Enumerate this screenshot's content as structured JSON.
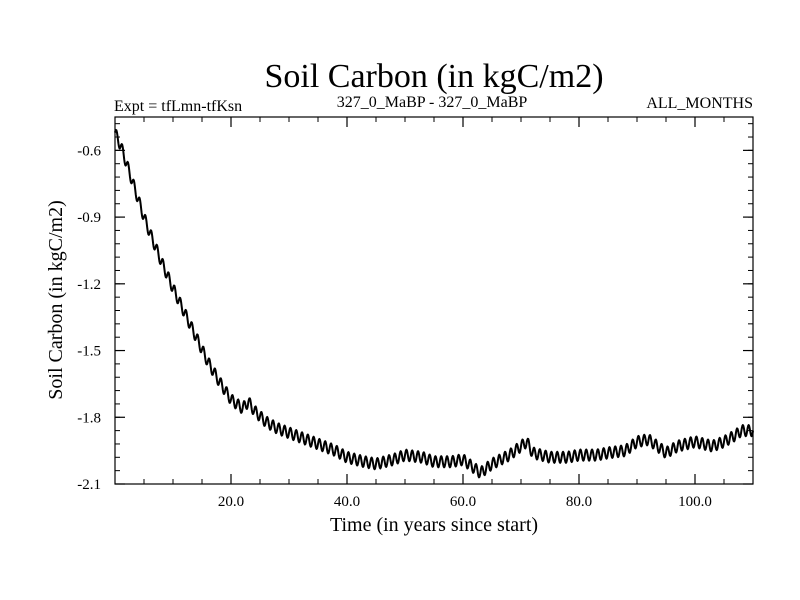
{
  "chart_data": {
    "type": "line",
    "title": "Soil Carbon (in kgC/m2)",
    "subtitle_left": "Expt = tfLmn-tfKsn",
    "subtitle_center": "327_0_MaBP - 327_0_MaBP",
    "subtitle_right": "ALL_MONTHS",
    "xlabel": "Time (in years since start)",
    "ylabel": "Soil Carbon (in kgC/m2)",
    "xlim": [
      0,
      110
    ],
    "ylim": [
      -2.1,
      -0.45
    ],
    "xticks": [
      20,
      40,
      60,
      80,
      100
    ],
    "xtick_labels": [
      "20.0",
      "40.0",
      "60.0",
      "80.0",
      "100.0"
    ],
    "xminor_step": 5,
    "yticks": [
      -0.6,
      -0.9,
      -1.2,
      -1.5,
      -1.8,
      -2.1
    ],
    "ytick_labels": [
      "-0.6",
      "-0.9",
      "-1.2",
      "-1.5",
      "-1.8",
      "-2.1"
    ],
    "yminor_step": 0.06,
    "seasonal_amplitude": 0.025,
    "series": [
      {
        "name": "Soil Carbon",
        "x": [
          0,
          1,
          2,
          3,
          4,
          5,
          6,
          8,
          10,
          12,
          14,
          16,
          18,
          20,
          22,
          23,
          24,
          26,
          28,
          30,
          32,
          35,
          38,
          40,
          43,
          45,
          48,
          50,
          53,
          55,
          58,
          60,
          62,
          63,
          65,
          68,
          70,
          71,
          72,
          75,
          78,
          80,
          83,
          85,
          88,
          90,
          92,
          94,
          95,
          97,
          100,
          103,
          105,
          107,
          108,
          110
        ],
        "values": [
          -0.52,
          -0.58,
          -0.66,
          -0.74,
          -0.82,
          -0.9,
          -0.97,
          -1.1,
          -1.22,
          -1.33,
          -1.44,
          -1.55,
          -1.64,
          -1.72,
          -1.76,
          -1.73,
          -1.77,
          -1.82,
          -1.85,
          -1.87,
          -1.89,
          -1.92,
          -1.95,
          -1.98,
          -2.0,
          -2.01,
          -1.99,
          -1.97,
          -1.98,
          -2.0,
          -2.0,
          -1.99,
          -2.03,
          -2.05,
          -2.01,
          -1.97,
          -1.93,
          -1.91,
          -1.96,
          -1.98,
          -1.98,
          -1.97,
          -1.97,
          -1.96,
          -1.95,
          -1.91,
          -1.9,
          -1.94,
          -1.96,
          -1.93,
          -1.91,
          -1.93,
          -1.91,
          -1.88,
          -1.86,
          -1.86
        ]
      }
    ]
  }
}
